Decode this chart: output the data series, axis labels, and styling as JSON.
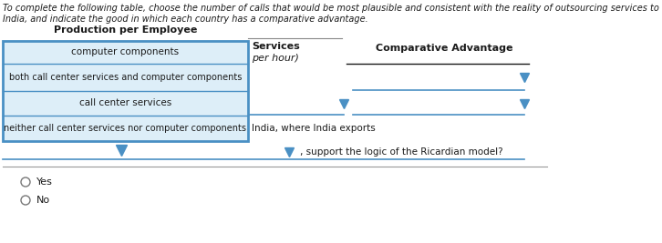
{
  "intro_line1": "To complete the following table, choose the number of calls that would be most plausible and consistent with the reality of outsourcing services to",
  "intro_line2": "India, and indicate the good in which each country has a comparative advantage.",
  "table_header": "Production per Employee",
  "col1_header": "computer components",
  "col2_bold": "Services",
  "col2_italic": "per hour)",
  "col3_header": "Comparative Advantage",
  "row1": "both call center services and computer components",
  "row2": "call center services",
  "row3": "neither call center services nor computer components",
  "text_after_row3": "India, where India exports",
  "text_last": ", support the logic of the Ricardian model?",
  "yes_label": "Yes",
  "no_label": "No",
  "blue": "#4a90c4",
  "light_blue_bg": "#ddeef8",
  "black": "#1a1a1a",
  "gray": "#888888",
  "white": "#ffffff",
  "intro_fontsize": 7.0,
  "table_fontsize": 7.5,
  "header_fontsize": 8.0
}
